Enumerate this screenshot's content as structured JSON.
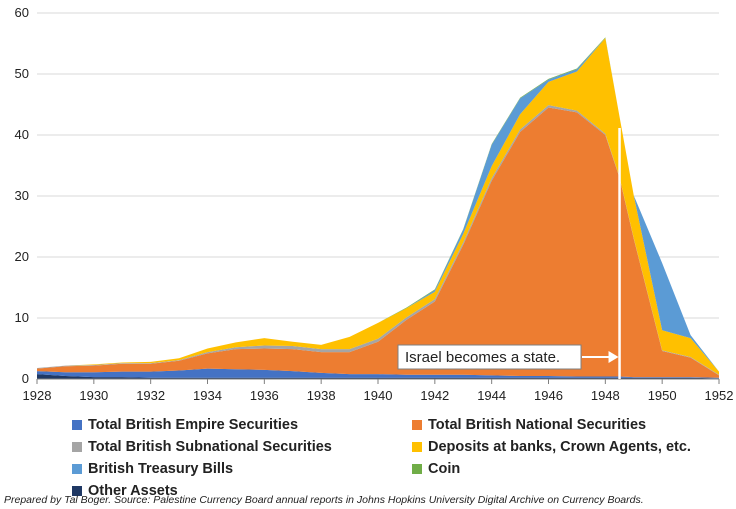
{
  "chart_data": {
    "type": "area",
    "stacked": true,
    "x": [
      1928,
      1929,
      1930,
      1931,
      1932,
      1933,
      1934,
      1935,
      1936,
      1937,
      1938,
      1939,
      1940,
      1941,
      1942,
      1943,
      1944,
      1945,
      1946,
      1947,
      1948,
      1948.5,
      1949,
      1950,
      1951,
      1952
    ],
    "series": [
      {
        "name": "Other Assets",
        "color": "#1f3864",
        "values": [
          0.8,
          0.5,
          0.3,
          0.3,
          0.2,
          0.2,
          0.2,
          0.2,
          0.2,
          0.2,
          0.2,
          0.2,
          0.2,
          0.2,
          0.2,
          0.2,
          0.2,
          0.2,
          0.2,
          0.2,
          0.2,
          0.2,
          0.2,
          0.2,
          0.2,
          0.1
        ]
      },
      {
        "name": "Total British Empire Securities",
        "color": "#4472c4",
        "values": [
          0.5,
          0.6,
          0.8,
          0.9,
          1.0,
          1.2,
          1.5,
          1.4,
          1.3,
          1.1,
          0.8,
          0.6,
          0.6,
          0.5,
          0.5,
          0.5,
          0.4,
          0.3,
          0.3,
          0.2,
          0.2,
          0.2,
          0.1,
          0.1,
          0.1,
          0.1
        ]
      },
      {
        "name": "Total British National Securities",
        "color": "#ed7d31",
        "values": [
          0.4,
          1.0,
          1.1,
          1.3,
          1.3,
          1.6,
          2.5,
          3.3,
          3.5,
          3.6,
          3.4,
          3.6,
          5.3,
          9.0,
          12.0,
          21.3,
          31.9,
          40.0,
          44.0,
          43.3,
          39.6,
          32.6,
          22.7,
          4.3,
          3.2,
          0.4
        ]
      },
      {
        "name": "Total British Subnational Securities",
        "color": "#a5a5a5",
        "values": [
          0.1,
          0.1,
          0.1,
          0.1,
          0.1,
          0.1,
          0.2,
          0.3,
          0.5,
          0.5,
          0.5,
          0.5,
          0.5,
          0.4,
          0.4,
          0.4,
          0.4,
          0.4,
          0.4,
          0.3,
          0.2,
          0.1,
          0.1,
          0.1,
          0.1,
          0.1
        ]
      },
      {
        "name": "Deposits at banks, Crown Agents, etc.",
        "color": "#ffc000",
        "values": [
          0,
          0,
          0.1,
          0.1,
          0.2,
          0.3,
          0.6,
          0.8,
          1.2,
          0.7,
          0.7,
          2.0,
          2.6,
          1.5,
          1.2,
          1.4,
          2.0,
          2.5,
          3.8,
          6.4,
          15.7,
          9.9,
          7.0,
          3.3,
          3.1,
          0.5
        ]
      },
      {
        "name": "British Treasury Bills",
        "color": "#5b9bd5",
        "values": [
          0,
          0,
          0,
          0,
          0,
          0,
          0,
          0,
          0,
          0,
          0,
          0,
          0,
          0,
          0.3,
          0.7,
          3.5,
          2.6,
          0.4,
          0.4,
          0,
          0,
          0,
          11.0,
          0.5,
          0
        ]
      },
      {
        "name": "Coin",
        "color": "#70ad47",
        "values": [
          0,
          0,
          0,
          0,
          0,
          0,
          0,
          0,
          0,
          0,
          0,
          0,
          0,
          0.1,
          0.1,
          0.1,
          0.1,
          0.1,
          0.1,
          0.1,
          0.1,
          0,
          0,
          0,
          0,
          0
        ]
      }
    ],
    "legend_order": [
      "Total British Empire Securities",
      "Total British National Securities",
      "Total British Subnational Securities",
      "Deposits at banks, Crown Agents, etc.",
      "British Treasury Bills",
      "Coin",
      "Other Assets"
    ],
    "x_ticks": [
      1928,
      1930,
      1932,
      1934,
      1936,
      1938,
      1940,
      1942,
      1944,
      1946,
      1948,
      1950,
      1952
    ],
    "y_ticks": [
      0,
      10,
      20,
      30,
      40,
      50,
      60
    ],
    "xlim": [
      1928,
      1952
    ],
    "ylim": [
      0,
      60
    ],
    "grid": "horizontal",
    "legend_position": "bottom",
    "title": "",
    "xlabel": "",
    "ylabel": "",
    "annotation": {
      "text": "Israel becomes a state.",
      "x": 1948.5
    }
  },
  "footnote": "Prepared by Tal Boger. Source: Palestine Currency Board annual reports in Johns Hopkins University Digital Archive on Currency Boards."
}
